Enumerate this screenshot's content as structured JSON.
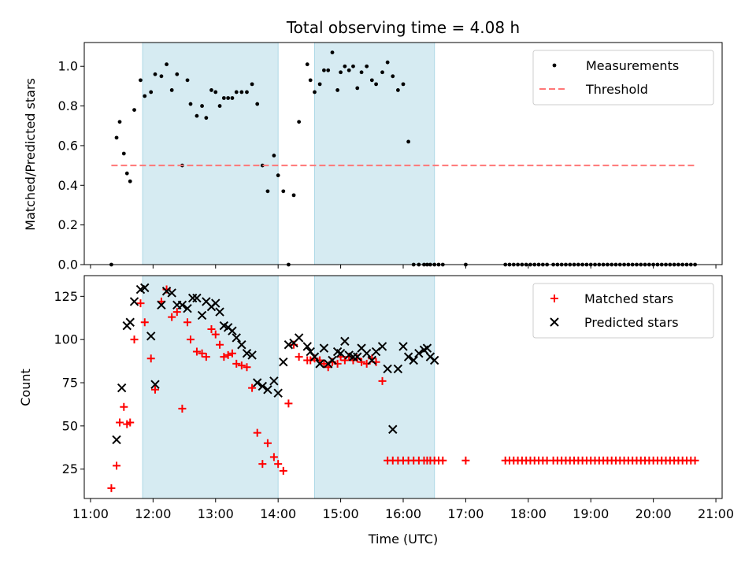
{
  "chart_data": [
    {
      "type": "scatter",
      "title": "Total observing time = 4.08 h",
      "xlabel": "",
      "ylabel": "Matched/Predicted stars",
      "xlim": [
        "11:00",
        "21:00"
      ],
      "ylim": [
        0,
        1.12
      ],
      "yticks": [
        "0.0",
        "0.2",
        "0.4",
        "0.6",
        "0.8",
        "1.0"
      ],
      "grid": false,
      "legend_position": "top-right",
      "shaded_intervals": [
        [
          "11:50",
          "14:00"
        ],
        [
          "14:35",
          "16:30"
        ]
      ],
      "series": [
        {
          "name": "Measurements",
          "marker": "dot",
          "color": "#000000",
          "x": [
            "11:20",
            "11:25",
            "11:28",
            "11:32",
            "11:35",
            "11:38",
            "11:42",
            "11:48",
            "11:52",
            "11:58",
            "12:02",
            "12:08",
            "12:13",
            "12:18",
            "12:23",
            "12:28",
            "12:33",
            "12:36",
            "12:42",
            "12:47",
            "12:51",
            "12:56",
            "13:00",
            "13:04",
            "13:08",
            "13:12",
            "13:16",
            "13:20",
            "13:25",
            "13:30",
            "13:35",
            "13:40",
            "13:45",
            "13:50",
            "13:56",
            "14:00",
            "14:05",
            "14:10",
            "14:15",
            "14:20",
            "14:28",
            "14:31",
            "14:35",
            "14:40",
            "14:44",
            "14:48",
            "14:52",
            "14:57",
            "15:00",
            "15:04",
            "15:08",
            "15:12",
            "15:16",
            "15:20",
            "15:25",
            "15:30",
            "15:34",
            "15:40",
            "15:45",
            "15:50",
            "15:55",
            "16:00",
            "16:05",
            "16:10",
            "16:15",
            "16:20",
            "16:23",
            "16:26",
            "16:30",
            "16:34",
            "16:38",
            "17:00",
            "17:38",
            "17:42",
            "17:46",
            "17:50",
            "17:54",
            "17:58",
            "18:02",
            "18:06",
            "18:10",
            "18:14",
            "18:18",
            "18:24",
            "18:28",
            "18:32",
            "18:36",
            "18:40",
            "18:44",
            "18:48",
            "18:52",
            "18:56",
            "19:00",
            "19:04",
            "19:08",
            "19:12",
            "19:16",
            "19:20",
            "19:24",
            "19:28",
            "19:32",
            "19:36",
            "19:40",
            "19:44",
            "19:48",
            "19:52",
            "19:56",
            "20:00",
            "20:04",
            "20:08",
            "20:12",
            "20:16",
            "20:20",
            "20:24",
            "20:28",
            "20:32",
            "20:36",
            "20:40"
          ],
          "y": [
            0.0,
            0.64,
            0.72,
            0.56,
            0.46,
            0.42,
            0.78,
            0.93,
            0.85,
            0.87,
            0.96,
            0.95,
            1.01,
            0.88,
            0.96,
            0.5,
            0.93,
            0.81,
            0.75,
            0.8,
            0.74,
            0.88,
            0.87,
            0.8,
            0.84,
            0.84,
            0.84,
            0.87,
            0.87,
            0.87,
            0.91,
            0.81,
            0.5,
            0.37,
            0.55,
            0.45,
            0.37,
            0.0,
            0.35,
            0.72,
            1.01,
            0.93,
            0.87,
            0.91,
            0.98,
            0.98,
            1.07,
            0.88,
            0.97,
            1.0,
            0.98,
            1.0,
            0.89,
            0.97,
            1.0,
            0.93,
            0.91,
            0.97,
            1.02,
            0.95,
            0.88,
            0.91,
            0.62,
            0.0,
            0.0,
            0.0,
            0.0,
            0.0,
            0.0,
            0.0,
            0.0,
            0.0,
            0.0,
            0.0,
            0.0,
            0.0,
            0.0,
            0.0,
            0.0,
            0.0,
            0.0,
            0.0,
            0.0,
            0.0,
            0.0,
            0.0,
            0.0,
            0.0,
            0.0,
            0.0,
            0.0,
            0.0,
            0.0,
            0.0,
            0.0,
            0.0,
            0.0,
            0.0,
            0.0,
            0.0,
            0.0,
            0.0,
            0.0,
            0.0,
            0.0,
            0.0,
            0.0,
            0.0,
            0.0,
            0.0,
            0.0,
            0.0,
            0.0,
            0.0,
            0.0,
            0.0,
            0.0,
            0.0
          ]
        },
        {
          "name": "Threshold",
          "type": "line",
          "style": "dashed",
          "color": "#ff7777",
          "x": [
            "11:20",
            "20:40"
          ],
          "y": [
            0.5,
            0.5
          ]
        }
      ]
    },
    {
      "type": "scatter",
      "title": "",
      "xlabel": "Time (UTC)",
      "ylabel": "Count",
      "xlim": [
        "11:00",
        "21:00"
      ],
      "xticks": [
        "11:00",
        "12:00",
        "13:00",
        "14:00",
        "15:00",
        "16:00",
        "17:00",
        "18:00",
        "19:00",
        "20:00",
        "21:00"
      ],
      "ylim": [
        8,
        137
      ],
      "yticks": [
        "25",
        "50",
        "75",
        "100",
        "125"
      ],
      "grid": false,
      "legend_position": "top-right",
      "shaded_intervals": [
        [
          "11:50",
          "14:00"
        ],
        [
          "14:35",
          "16:30"
        ]
      ],
      "series": [
        {
          "name": "Matched stars",
          "marker": "plus",
          "color": "#ff0000",
          "x": [
            "11:20",
            "11:25",
            "11:28",
            "11:32",
            "11:35",
            "11:38",
            "11:42",
            "11:48",
            "11:52",
            "11:58",
            "12:02",
            "12:08",
            "12:13",
            "12:18",
            "12:23",
            "12:28",
            "12:33",
            "12:36",
            "12:42",
            "12:47",
            "12:51",
            "12:56",
            "13:00",
            "13:04",
            "13:08",
            "13:12",
            "13:16",
            "13:20",
            "13:25",
            "13:30",
            "13:35",
            "13:40",
            "13:45",
            "13:50",
            "13:56",
            "14:00",
            "14:05",
            "14:10",
            "14:15",
            "14:20",
            "14:28",
            "14:31",
            "14:35",
            "14:40",
            "14:44",
            "14:48",
            "14:52",
            "14:57",
            "15:00",
            "15:04",
            "15:08",
            "15:12",
            "15:16",
            "15:20",
            "15:25",
            "15:30",
            "15:34",
            "15:40",
            "15:45",
            "15:50",
            "15:55",
            "16:00",
            "16:05",
            "16:10",
            "16:15",
            "16:20",
            "16:23",
            "16:26",
            "16:30",
            "16:34",
            "16:38",
            "17:00",
            "17:38",
            "17:42",
            "17:46",
            "17:50",
            "17:54",
            "17:58",
            "18:02",
            "18:06",
            "18:10",
            "18:14",
            "18:18",
            "18:24",
            "18:28",
            "18:32",
            "18:36",
            "18:40",
            "18:44",
            "18:48",
            "18:52",
            "18:56",
            "19:00",
            "19:04",
            "19:08",
            "19:12",
            "19:16",
            "19:20",
            "19:24",
            "19:28",
            "19:32",
            "19:36",
            "19:40",
            "19:44",
            "19:48",
            "19:52",
            "19:56",
            "20:00",
            "20:04",
            "20:08",
            "20:12",
            "20:16",
            "20:20",
            "20:24",
            "20:28",
            "20:32",
            "20:36",
            "20:40"
          ],
          "y": [
            14,
            27,
            52,
            61,
            51,
            52,
            100,
            121,
            110,
            89,
            71,
            122,
            129,
            113,
            116,
            60,
            110,
            100,
            93,
            92,
            90,
            106,
            103,
            97,
            90,
            91,
            92,
            86,
            85,
            84,
            72,
            46,
            28,
            40,
            32,
            28,
            24,
            63,
            97,
            90,
            88,
            88,
            89,
            88,
            86,
            84,
            87,
            86,
            90,
            88,
            90,
            88,
            89,
            87,
            86,
            89,
            87,
            76,
            30,
            30,
            30,
            30,
            30,
            30,
            30,
            30,
            30,
            30,
            30,
            30,
            30,
            30,
            30,
            30,
            30,
            30,
            30,
            30,
            30,
            30,
            30,
            30,
            30,
            30,
            30,
            30,
            30,
            30,
            30,
            30,
            30,
            30,
            30,
            30,
            30,
            30,
            30,
            30,
            30,
            30,
            30,
            30,
            30,
            30,
            30,
            30,
            30,
            30,
            30,
            30,
            30,
            30,
            30,
            30,
            30,
            30,
            30,
            30
          ]
        },
        {
          "name": "Predicted stars",
          "marker": "x",
          "color": "#000000",
          "x": [
            "11:25",
            "11:30",
            "11:35",
            "11:38",
            "11:42",
            "11:48",
            "11:52",
            "11:58",
            "12:02",
            "12:08",
            "12:13",
            "12:18",
            "12:23",
            "12:28",
            "12:33",
            "12:38",
            "12:42",
            "12:47",
            "12:51",
            "12:56",
            "13:00",
            "13:04",
            "13:08",
            "13:12",
            "13:16",
            "13:20",
            "13:25",
            "13:30",
            "13:35",
            "13:40",
            "13:45",
            "13:50",
            "13:56",
            "14:00",
            "14:05",
            "14:10",
            "14:15",
            "14:20",
            "14:28",
            "14:31",
            "14:35",
            "14:40",
            "14:44",
            "14:48",
            "14:52",
            "14:57",
            "15:00",
            "15:04",
            "15:08",
            "15:12",
            "15:16",
            "15:20",
            "15:25",
            "15:30",
            "15:34",
            "15:40",
            "15:45",
            "15:50",
            "15:55",
            "16:00",
            "16:05",
            "16:10",
            "16:15",
            "16:20",
            "16:23",
            "16:26",
            "16:30"
          ],
          "y": [
            42,
            72,
            108,
            110,
            122,
            129,
            130,
            102,
            74,
            120,
            128,
            127,
            120,
            120,
            118,
            124,
            124,
            114,
            122,
            119,
            121,
            116,
            108,
            107,
            105,
            101,
            97,
            92,
            91,
            75,
            73,
            71,
            76,
            69,
            87,
            97,
            98,
            101,
            96,
            93,
            90,
            86,
            95,
            86,
            88,
            93,
            92,
            99,
            91,
            90,
            90,
            95,
            92,
            88,
            93,
            96,
            83,
            48,
            83,
            96,
            90,
            88,
            92,
            94,
            95,
            90,
            88
          ]
        }
      ]
    }
  ]
}
